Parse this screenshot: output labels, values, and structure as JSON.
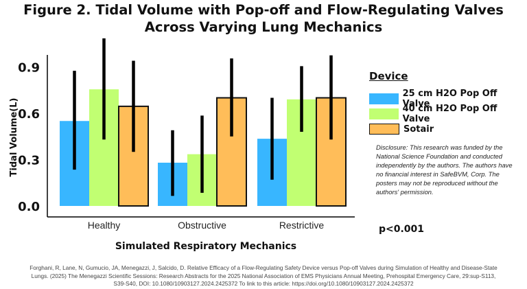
{
  "title": "Figure 2. Tidal Volume with Pop-off  and Flow-Regulating Valves Across Varying Lung Mechanics",
  "chart_data": {
    "type": "bar",
    "title": "Figure 2. Tidal Volume with Pop-off  and Flow-Regulating Valves Across Varying Lung Mechanics",
    "xlabel": "Simulated Respiratory Mechanics",
    "ylabel": "Tidal Volume(L)",
    "ylim": [
      0,
      1.0
    ],
    "yticks": [
      {
        "value": 0.0,
        "label": "0.0"
      },
      {
        "value": 0.3,
        "label": "0.3"
      },
      {
        "value": 0.6,
        "label": "0.6"
      },
      {
        "value": 0.9,
        "label": "0.9"
      }
    ],
    "categories": [
      "Healthy",
      "Obstructive",
      "Restrictive"
    ],
    "series": [
      {
        "name": "25 cm H2O Pop Off Valve",
        "color": "#38b6ff",
        "outline": false,
        "values": [
          0.55,
          0.28,
          0.435
        ],
        "err_low": [
          0.235,
          0.065,
          0.17
        ],
        "err_high": [
          0.875,
          0.49,
          0.7
        ]
      },
      {
        "name": "40 cm H2O Pop Off Valve",
        "color": "#c1ff72",
        "outline": false,
        "values": [
          0.755,
          0.335,
          0.69
        ],
        "err_low": [
          0.43,
          0.085,
          0.48
        ],
        "err_high": [
          1.085,
          0.585,
          0.905
        ]
      },
      {
        "name": "Sotair",
        "color": "#ffbd59",
        "outline": true,
        "values": [
          0.645,
          0.7,
          0.7
        ],
        "err_low": [
          0.35,
          0.45,
          0.43
        ],
        "err_high": [
          0.94,
          0.955,
          0.975
        ]
      }
    ],
    "legend_position": "right",
    "grid": false
  },
  "legend": {
    "title": "Device",
    "items": [
      {
        "label": "25 cm H2O Pop Off Valve",
        "color": "#38b6ff"
      },
      {
        "label": "40 cm H2O Pop Off Valve",
        "color": "#c1ff72"
      },
      {
        "label": "Sotair",
        "color": "#ffbd59"
      }
    ]
  },
  "disclosure": "Disclosure: This research was funded by the National Science Foundation and conducted independently by the authors. The authors have no financial interest in SafeBVM, Corp. The posters may not be reproduced without the authors' permission.",
  "p_value": "p<0.001",
  "citation": {
    "line1": "Forghani, R, Lane, N, Gumucio, JA, Menegazzi, J, Salcido, D. Relative Efficacy of a Flow-Regulating Safety Device versus Pop-off Valves during Simulation of Healthy and Disease-State",
    "line2": "Lungs. (2025) The Menegazzi Scientific Sessions: Research Abstracts for the 2025 National Association of EMS Physicians Annual Meeting, Prehospital Emergency Care, 29:sup-S113,",
    "line3": "S39-S40, DOI: 10.1080/10903127.2024.2425372 To link to this article: https://doi.org/10.1080/10903127.2024.2425372"
  }
}
